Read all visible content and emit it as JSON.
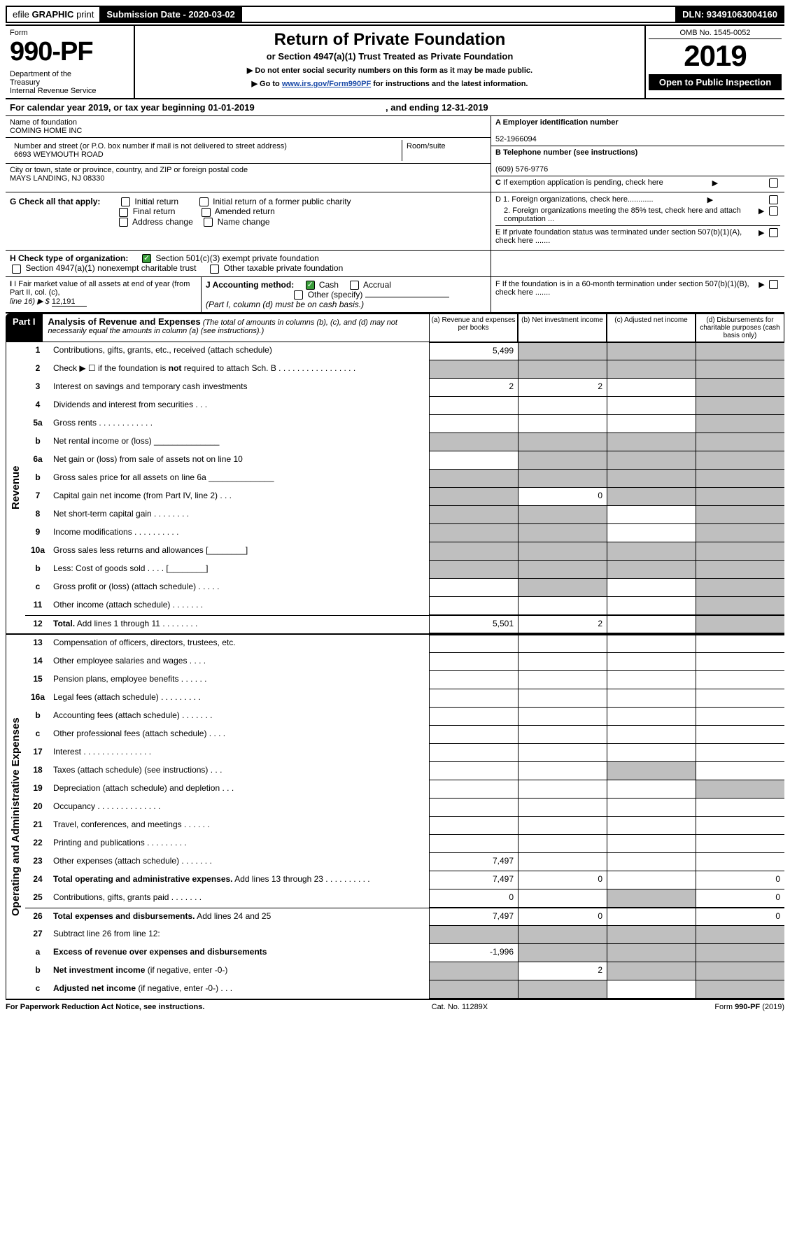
{
  "colors": {
    "black": "#000000",
    "white": "#ffffff",
    "shaded": "#bfbfbf",
    "link": "#1a4aa8",
    "check_green": "#3b9e3b"
  },
  "topbar": {
    "efile_prefix": "efile",
    "efile_bold": "GRAPHIC",
    "efile_suffix": "print",
    "submission_label": "Submission Date - 2020-03-02",
    "dln": "DLN: 93491063004160"
  },
  "header": {
    "form_label": "Form",
    "form_number": "990-PF",
    "dept": "Department of the Treasury\nInternal Revenue Service",
    "title": "Return of Private Foundation",
    "subtitle": "or Section 4947(a)(1) Trust Treated as Private Foundation",
    "note1": "▶ Do not enter social security numbers on this form as it may be made public.",
    "note2_prefix": "▶ Go to ",
    "note2_link": "www.irs.gov/Form990PF",
    "note2_suffix": " for instructions and the latest information.",
    "omb": "OMB No. 1545-0052",
    "year": "2019",
    "open": "Open to Public Inspection"
  },
  "cal_year": {
    "prefix": "For calendar year 2019, or tax year beginning ",
    "begin": "01-01-2019",
    "mid": " , and ending ",
    "end": "12-31-2019"
  },
  "name_block": {
    "name_label": "Name of foundation",
    "name_value": "COMING HOME INC",
    "addr_label": "Number and street (or P.O. box number if mail is not delivered to street address)",
    "addr_value": "6693 WEYMOUTH ROAD",
    "suite_label": "Room/suite",
    "suite_value": "",
    "city_label": "City or town, state or province, country, and ZIP or foreign postal code",
    "city_value": "MAYS LANDING, NJ  08330",
    "ein_label": "A Employer identification number",
    "ein_value": "52-1966094",
    "phone_label": "B Telephone number (see instructions)",
    "phone_value": "(609) 576-9776",
    "c_label": "C If exemption application is pending, check here"
  },
  "section_g": {
    "g_label": "G Check all that apply:",
    "initial": "Initial return",
    "initial_former": "Initial return of a former public charity",
    "final": "Final return",
    "amended": "Amended return",
    "addr_change": "Address change",
    "name_change": "Name change",
    "d1": "D 1. Foreign organizations, check here............",
    "d2": "2. Foreign organizations meeting the 85% test, check here and attach computation ...",
    "e": "E  If private foundation status was terminated under section 507(b)(1)(A), check here ......."
  },
  "section_h": {
    "h_label": "H Check type of organization:",
    "h1": "Section 501(c)(3) exempt private foundation",
    "h2": "Section 4947(a)(1) nonexempt charitable trust",
    "h3": "Other taxable private foundation"
  },
  "section_ij": {
    "i_label": "I Fair market value of all assets at end of year (from Part II, col. (c),",
    "i_line": "line 16) ▶ $",
    "i_value": "12,191",
    "j_label": "J Accounting method:",
    "j_cash": "Cash",
    "j_accrual": "Accrual",
    "j_other_label": "Other (specify)",
    "j_note": "(Part I, column (d) must be on cash basis.)",
    "f_label": "F  If the foundation is in a 60-month termination under section 507(b)(1)(B), check here ......."
  },
  "part1": {
    "badge": "Part I",
    "title": "Analysis of Revenue and Expenses",
    "desc": "(The total of amounts in columns (b), (c), and (d) may not necessarily equal the amounts in column (a) (see instructions).)",
    "col_a": "(a)   Revenue and expenses per books",
    "col_b": "(b)  Net investment income",
    "col_c": "(c)  Adjusted net income",
    "col_d": "(d)  Disbursements for charitable purposes (cash basis only)"
  },
  "side_labels": {
    "revenue": "Revenue",
    "expenses": "Operating and Administrative Expenses"
  },
  "rows": [
    {
      "n": "1",
      "label": "Contributions, gifts, grants, etc., received (attach schedule)",
      "a": "5,499",
      "b_shaded": true,
      "c_shaded": true,
      "d_shaded": true
    },
    {
      "n": "2",
      "label": "Check ▶ ☐ if the foundation is <b>not</b> required to attach Sch. B   .  .  .  .  .  .  .  .  .  .  .  .  .  .  .  .  .",
      "a_shaded": true,
      "b_shaded": true,
      "c_shaded": true,
      "d_shaded": true
    },
    {
      "n": "3",
      "label": "Interest on savings and temporary cash investments",
      "a": "2",
      "b": "2",
      "d_shaded": true
    },
    {
      "n": "4",
      "label": "Dividends and interest from securities    .   .   .",
      "d_shaded": true
    },
    {
      "n": "5a",
      "label": "Gross rents   .   .   .   .   .   .   .   .   .   .   .   .",
      "d_shaded": true
    },
    {
      "n": "b",
      "label": "Net rental income or (loss)  ______________",
      "a_shaded": true,
      "b_shaded": true,
      "c_shaded": true,
      "d_shaded": true
    },
    {
      "n": "6a",
      "label": "Net gain or (loss) from sale of assets not on line 10",
      "b_shaded": true,
      "c_shaded": true,
      "d_shaded": true
    },
    {
      "n": "b",
      "label": "Gross sales price for all assets on line 6a ______________",
      "a_shaded": true,
      "b_shaded": true,
      "c_shaded": true,
      "d_shaded": true
    },
    {
      "n": "7",
      "label": "Capital gain net income (from Part IV, line 2)    .   .   .",
      "a_shaded": true,
      "b": "0",
      "c_shaded": true,
      "d_shaded": true
    },
    {
      "n": "8",
      "label": "Net short-term capital gain   .   .   .   .   .   .   .   .",
      "a_shaded": true,
      "b_shaded": true,
      "d_shaded": true
    },
    {
      "n": "9",
      "label": "Income modifications   .   .   .   .   .   .   .   .   .   .",
      "a_shaded": true,
      "b_shaded": true,
      "d_shaded": true
    },
    {
      "n": "10a",
      "label": "Gross sales less returns and allowances  [________]",
      "a_shaded": true,
      "b_shaded": true,
      "c_shaded": true,
      "d_shaded": true
    },
    {
      "n": "b",
      "label": "Less: Cost of goods sold    .   .   .   .  [________]",
      "a_shaded": true,
      "b_shaded": true,
      "c_shaded": true,
      "d_shaded": true
    },
    {
      "n": "c",
      "label": "Gross profit or (loss) (attach schedule)    .   .   .   .   .",
      "b_shaded": true,
      "d_shaded": true
    },
    {
      "n": "11",
      "label": "Other income (attach schedule)    .   .   .   .   .   .   .",
      "d_shaded": true
    },
    {
      "n": "12",
      "label": "<b>Total.</b> Add lines 1 through 11    .   .   .   .   .   .   .   .",
      "a": "5,501",
      "b": "2",
      "d_shaded": true,
      "divider": true
    }
  ],
  "exp_rows": [
    {
      "n": "13",
      "label": "Compensation of officers, directors, trustees, etc."
    },
    {
      "n": "14",
      "label": "Other employee salaries and wages    .   .   .   ."
    },
    {
      "n": "15",
      "label": "Pension plans, employee benefits    .   .   .   .   .   ."
    },
    {
      "n": "16a",
      "label": "Legal fees (attach schedule)   .   .   .   .   .   .   .   .   ."
    },
    {
      "n": "b",
      "label": "Accounting fees (attach schedule)   .   .   .   .   .   .   ."
    },
    {
      "n": "c",
      "label": "Other professional fees (attach schedule)    .   .   .   ."
    },
    {
      "n": "17",
      "label": "Interest   .   .   .   .   .   .   .   .   .   .   .   .   .   .   ."
    },
    {
      "n": "18",
      "label": "Taxes (attach schedule) (see instructions)    .   .   .",
      "c_shaded": true
    },
    {
      "n": "19",
      "label": "Depreciation (attach schedule) and depletion    .   .   .",
      "d_shaded": true
    },
    {
      "n": "20",
      "label": "Occupancy   .   .   .   .   .   .   .   .   .   .   .   .   .   ."
    },
    {
      "n": "21",
      "label": "Travel, conferences, and meetings   .   .   .   .   .   ."
    },
    {
      "n": "22",
      "label": "Printing and publications   .   .   .   .   .   .   .   .   ."
    },
    {
      "n": "23",
      "label": "Other expenses (attach schedule)   .   .   .   .   .   .   .",
      "a": "7,497"
    },
    {
      "n": "24",
      "label": "<b>Total operating and administrative expenses.</b> Add lines 13 through 23   .   .   .   .   .   .   .   .   .   .",
      "a": "7,497",
      "b": "0",
      "d": "0"
    },
    {
      "n": "25",
      "label": "Contributions, gifts, grants paid    .   .   .   .   .   .   .",
      "a": "0",
      "c_shaded": true,
      "d": "0"
    },
    {
      "n": "26",
      "label": "<b>Total expenses and disbursements.</b> Add lines 24 and 25",
      "a": "7,497",
      "b": "0",
      "d": "0",
      "divider": true
    },
    {
      "n": "27",
      "label": "Subtract line 26 from line 12:",
      "a_shaded": true,
      "b_shaded": true,
      "c_shaded": true,
      "d_shaded": true
    },
    {
      "n": "a",
      "label": "<b>Excess of revenue over expenses and disbursements</b>",
      "a": "-1,996",
      "b_shaded": true,
      "c_shaded": true,
      "d_shaded": true
    },
    {
      "n": "b",
      "label": "<b>Net investment income</b> (if negative, enter -0-)",
      "a_shaded": true,
      "b": "2",
      "c_shaded": true,
      "d_shaded": true
    },
    {
      "n": "c",
      "label": "<b>Adjusted net income</b> (if negative, enter -0-)   .   .   .",
      "a_shaded": true,
      "b_shaded": true,
      "d_shaded": true
    }
  ],
  "footer": {
    "left": "For Paperwork Reduction Act Notice, see instructions.",
    "center": "Cat. No. 11289X",
    "right": "Form 990-PF (2019)"
  }
}
